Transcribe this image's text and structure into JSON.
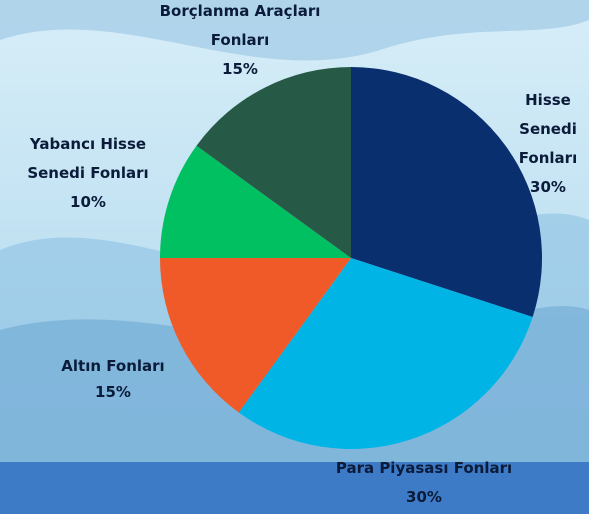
{
  "chart_data": {
    "type": "pie",
    "categories": [
      "Hisse Senedi Fonları",
      "Para Piyasası Fonları",
      "Altın Fonları",
      "Yabancı Hisse Senedi Fonları",
      "Borçlanma Araçları Fonları"
    ],
    "values": [
      30,
      30,
      15,
      10,
      15
    ],
    "value_labels": [
      "30%",
      "30%",
      "15%",
      "10%",
      "15%"
    ],
    "colors": [
      "#0a2f6e",
      "#00b4e6",
      "#f05a28",
      "#00c062",
      "#265a47"
    ]
  }
}
